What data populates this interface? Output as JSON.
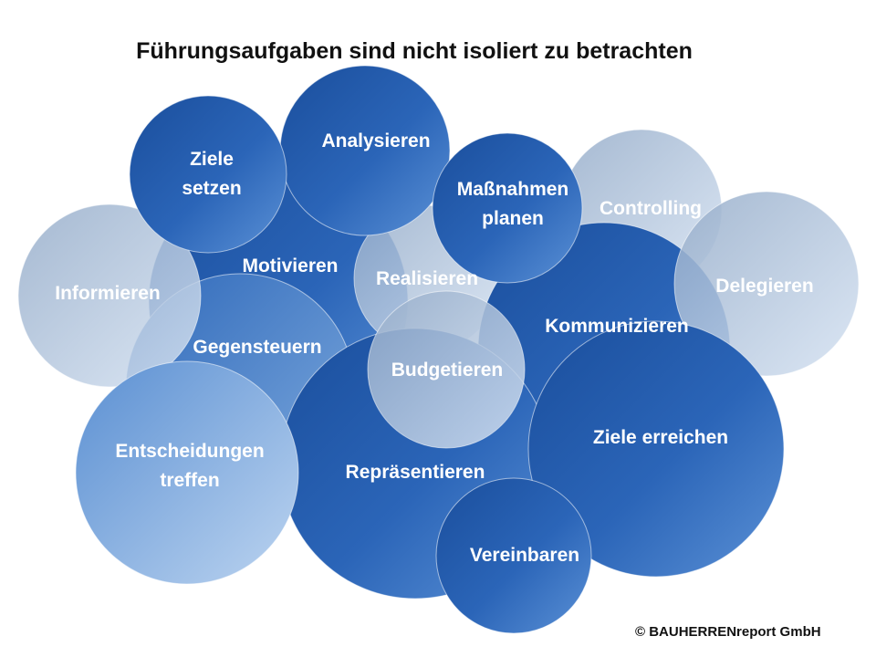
{
  "title": "Führungsaufgaben sind nicht isoliert zu betrachten",
  "copyright": "© BAUHERRENreport GmbH",
  "colors": {
    "dark_blue": "#1f57a8",
    "mid_blue": "#4a82cc",
    "light_blue": "#9dbfe6",
    "grey_blue": "#a9bfd9",
    "label": "#ffffff"
  },
  "nodes": [
    {
      "id": "motivieren",
      "lines": [
        "Motivieren"
      ],
      "style": "dark"
    },
    {
      "id": "realisieren",
      "lines": [
        "Realisieren"
      ],
      "style": "grey"
    },
    {
      "id": "controlling",
      "lines": [
        "Controlling"
      ],
      "style": "grey"
    },
    {
      "id": "kommunizieren",
      "lines": [
        "Kommunizieren"
      ],
      "style": "dark"
    },
    {
      "id": "gegensteuern",
      "lines": [
        "Gegensteuern"
      ],
      "style": "mid"
    },
    {
      "id": "informieren",
      "lines": [
        "Informieren"
      ],
      "style": "grey"
    },
    {
      "id": "delegieren",
      "lines": [
        "Delegieren"
      ],
      "style": "grey"
    },
    {
      "id": "repraesentieren",
      "lines": [
        "Repräsentieren"
      ],
      "style": "dark"
    },
    {
      "id": "entscheidungen-treffen",
      "lines": [
        "Entscheidungen",
        "treffen"
      ],
      "style": "light"
    },
    {
      "id": "budgetieren",
      "lines": [
        "Budgetieren"
      ],
      "style": "grey"
    },
    {
      "id": "ziele-erreichen",
      "lines": [
        "Ziele erreichen"
      ],
      "style": "dark"
    },
    {
      "id": "vereinbaren",
      "lines": [
        "Vereinbaren"
      ],
      "style": "dark"
    },
    {
      "id": "analysieren",
      "lines": [
        "Analysieren"
      ],
      "style": "dark"
    },
    {
      "id": "ziele-setzen",
      "lines": [
        "Ziele",
        "setzen"
      ],
      "style": "dark"
    },
    {
      "id": "massnahmen-planen",
      "lines": [
        "Maßnahmen",
        "planen"
      ],
      "style": "dark"
    }
  ]
}
